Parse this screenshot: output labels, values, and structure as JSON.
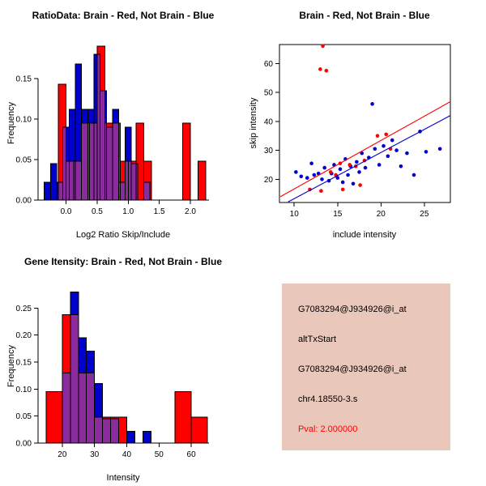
{
  "colors": {
    "background": "#FFFFFF",
    "brain": "#FF0000",
    "not_brain": "#0000CC",
    "overlap": "#8B2C9E",
    "axis": "#000000",
    "info_box_bg": "#E9C7BA",
    "pval_text": "#FF0000"
  },
  "chart_data": [
    {
      "id": "ratio-histogram",
      "type": "bar",
      "variant": "overlaid-histogram",
      "title": "RatioData: Brain - Red, Not Brain - Blue",
      "xlabel": "Log2 Ratio Skip/Include",
      "ylabel": "Frequency",
      "xlim": [
        -0.45,
        2.3
      ],
      "ylim": [
        0,
        0.19
      ],
      "frame": false,
      "grid": false,
      "xticks": [
        {
          "v": 0.0,
          "label": "0.0"
        },
        {
          "v": 0.5,
          "label": "0.5"
        },
        {
          "v": 1.0,
          "label": "1.0"
        },
        {
          "v": 1.5,
          "label": "1.5"
        },
        {
          "v": 2.0,
          "label": "2.0"
        }
      ],
      "yticks": [
        {
          "v": 0.0,
          "label": "0.00"
        },
        {
          "v": 0.05,
          "label": "0.05"
        },
        {
          "v": 0.1,
          "label": "0.10"
        },
        {
          "v": 0.15,
          "label": "0.15"
        }
      ],
      "series": [
        {
          "name": "Not Brain",
          "color": "#0000CC",
          "bin_start": -0.35,
          "bin_width": 0.1,
          "frequencies": [
            0.022,
            0.045,
            0.022,
            0.09,
            0.112,
            0.168,
            0.112,
            0.112,
            0.18,
            0.135,
            0.09,
            0.112,
            0.022,
            0.09,
            0.045,
            0,
            0.022
          ]
        },
        {
          "name": "Brain",
          "color": "#FF0000",
          "bin_start": -0.125,
          "bin_width": 0.125,
          "frequencies": [
            0.143,
            0.048,
            0.048,
            0.095,
            0.095,
            0.19,
            0.095,
            0.095,
            0.048,
            0.048,
            0.095,
            0.048,
            0,
            0,
            0,
            0,
            0.095,
            0,
            0.048
          ]
        }
      ]
    },
    {
      "id": "intensity-scatter",
      "type": "scatter",
      "title": "Brain - Red, Not Brain - Blue",
      "xlabel": "include intensity",
      "ylabel": "skip intensity",
      "xlim": [
        8.3,
        28
      ],
      "ylim": [
        12,
        66.5
      ],
      "frame": true,
      "grid": false,
      "xticks": [
        {
          "v": 10,
          "label": "10"
        },
        {
          "v": 15,
          "label": "15"
        },
        {
          "v": 20,
          "label": "20"
        },
        {
          "v": 25,
          "label": "25"
        }
      ],
      "yticks": [
        {
          "v": 20,
          "label": "20"
        },
        {
          "v": 30,
          "label": "30"
        },
        {
          "v": 40,
          "label": "40"
        },
        {
          "v": 50,
          "label": "50"
        },
        {
          "v": 60,
          "label": "60"
        }
      ],
      "series": [
        {
          "name": "Not Brain",
          "color": "#0000CC",
          "points": [
            [
              10.2,
              22.5
            ],
            [
              10.8,
              21
            ],
            [
              11.5,
              20.5
            ],
            [
              12,
              25.5
            ],
            [
              12.3,
              21.5
            ],
            [
              12.8,
              22
            ],
            [
              13.2,
              20
            ],
            [
              13.5,
              24
            ],
            [
              14,
              19.5
            ],
            [
              14.3,
              22
            ],
            [
              14.6,
              25
            ],
            [
              15,
              20.5
            ],
            [
              15.3,
              23.5
            ],
            [
              15.6,
              19
            ],
            [
              15.9,
              27
            ],
            [
              16.2,
              21.5
            ],
            [
              16.5,
              24.5
            ],
            [
              16.8,
              18.5
            ],
            [
              17.2,
              26
            ],
            [
              17.5,
              22.5
            ],
            [
              17.8,
              29
            ],
            [
              18.2,
              24
            ],
            [
              18.6,
              27.5
            ],
            [
              19,
              46
            ],
            [
              19.3,
              30.5
            ],
            [
              19.8,
              25
            ],
            [
              20.3,
              31.5
            ],
            [
              20.8,
              28
            ],
            [
              21.3,
              33.5
            ],
            [
              21.8,
              30
            ],
            [
              22.3,
              24.5
            ],
            [
              23,
              29
            ],
            [
              23.8,
              21.5
            ],
            [
              24.5,
              36.5
            ],
            [
              25.2,
              29.5
            ],
            [
              26.8,
              30.5
            ]
          ]
        },
        {
          "name": "Brain",
          "color": "#FF0000",
          "points": [
            [
              13.3,
              66
            ],
            [
              13,
              58
            ],
            [
              13.7,
              57.5
            ],
            [
              11.8,
              16.5
            ],
            [
              13.1,
              16
            ],
            [
              14.2,
              22.5
            ],
            [
              14.8,
              21.5
            ],
            [
              15.3,
              25.5
            ],
            [
              15.6,
              16.5
            ],
            [
              16.4,
              25
            ],
            [
              17.1,
              24.5
            ],
            [
              17.6,
              18
            ],
            [
              18.1,
              26.5
            ],
            [
              19.6,
              35
            ],
            [
              20.6,
              35.5
            ],
            [
              21.1,
              30.5
            ]
          ]
        }
      ],
      "fit_lines": [
        {
          "name": "not-brain-fit",
          "color": "#0000CC",
          "x1": 9.3,
          "y1": 12.2,
          "x2": 28,
          "y2": 42
        },
        {
          "name": "brain-fit",
          "color": "#FF0000",
          "x1": 8.4,
          "y1": 14,
          "x2": 28,
          "y2": 46.8
        }
      ]
    },
    {
      "id": "gene-intensity-histogram",
      "type": "bar",
      "variant": "overlaid-histogram",
      "title": "Gene Itensity: Brain - Red, Not Brain - Blue",
      "xlabel": "Intensity",
      "ylabel": "Frequency",
      "xlim": [
        12.5,
        65.5
      ],
      "ylim": [
        0,
        0.285
      ],
      "frame": false,
      "grid": false,
      "xticks": [
        {
          "v": 20,
          "label": "20"
        },
        {
          "v": 30,
          "label": "30"
        },
        {
          "v": 40,
          "label": "40"
        },
        {
          "v": 50,
          "label": "50"
        },
        {
          "v": 60,
          "label": "60"
        }
      ],
      "yticks": [
        {
          "v": 0.0,
          "label": "0.00"
        },
        {
          "v": 0.05,
          "label": "0.05"
        },
        {
          "v": 0.1,
          "label": "0.10"
        },
        {
          "v": 0.15,
          "label": "0.15"
        },
        {
          "v": 0.2,
          "label": "0.20"
        },
        {
          "v": 0.25,
          "label": "0.25"
        }
      ],
      "series": [
        {
          "name": "Not Brain",
          "color": "#0000CC",
          "bin_start": 20,
          "bin_width": 2.5,
          "frequencies": [
            0.13,
            0.28,
            0.195,
            0.17,
            0.11,
            0.045,
            0.045,
            0,
            0.022,
            0,
            0.022
          ]
        },
        {
          "name": "Brain",
          "color": "#FF0000",
          "bin_start": 15,
          "bin_width": 5,
          "frequencies": [
            0.095,
            0.238,
            0.13,
            0.048,
            0.048,
            0,
            0,
            0,
            0.095,
            0.048
          ]
        }
      ]
    }
  ],
  "info_box": {
    "lines": [
      {
        "text": "G7083294@J934926@i_at",
        "color": "#000000"
      },
      {
        "text": "altTxStart",
        "color": "#000000"
      },
      {
        "text": "G7083294@J934926@i_at",
        "color": "#000000"
      },
      {
        "text": "chr4.18550-3.s",
        "color": "#000000"
      },
      {
        "text": "Pval: 2.000000",
        "color": "#FF0000"
      }
    ]
  }
}
